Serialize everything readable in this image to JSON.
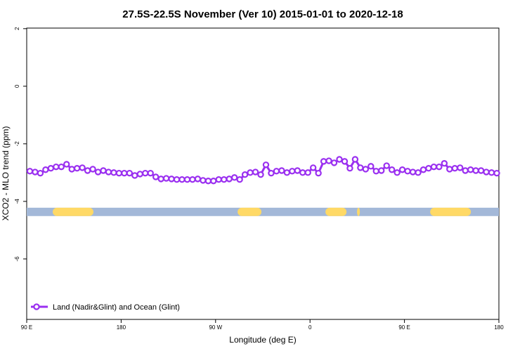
{
  "chart_data": {
    "type": "line",
    "title": "27.5S-22.5S November (Ver 10)   2015-01-01 to 2020-12-18",
    "x_label": "Longitude (deg E)",
    "y_label": "XCO2 - MLO trend (ppm)",
    "xlim": [
      90,
      540
    ],
    "ylim": [
      -8.1,
      2.02
    ],
    "xticks": [
      {
        "value": 90,
        "label": "90 E"
      },
      180,
      {
        "value": 270,
        "label": "90 W"
      },
      {
        "value": 360,
        "label": "0"
      },
      {
        "value": 450,
        "label": "90 E"
      },
      {
        "value": 540,
        "label": "180"
      }
    ],
    "yticks": [
      2,
      0,
      -2,
      -4,
      -6
    ],
    "legend": "bottom-left",
    "land_color": "#ffd966",
    "ocean_color": "#a3b8d8",
    "land_ranges": [
      [
        114.8,
        153.6
      ],
      [
        291,
        313.7
      ],
      [
        374.7,
        394.8
      ],
      [
        404.8,
        407.5
      ],
      [
        474.5,
        513.3
      ]
    ],
    "x": [
      93,
      98,
      103,
      108,
      113,
      118,
      123,
      128,
      133,
      138,
      143,
      148,
      153,
      158,
      163,
      168,
      173,
      178,
      183,
      188,
      193,
      198,
      203,
      208,
      213,
      218,
      223,
      228,
      233,
      238,
      243,
      248,
      253,
      258,
      263,
      268,
      273,
      278,
      283,
      288,
      293,
      298,
      303,
      308,
      313,
      318,
      323,
      328,
      333,
      338,
      343,
      348,
      353,
      358,
      363,
      368,
      373,
      378,
      383,
      388,
      393,
      398,
      403,
      408,
      413,
      418,
      423,
      428,
      433,
      438,
      443,
      448,
      453,
      458,
      463,
      468,
      473,
      478,
      483,
      488,
      493,
      498,
      503,
      508,
      513,
      518,
      523,
      528,
      533,
      538
    ],
    "series": [
      {
        "name": "Land (Nadir&Glint) and Ocean (Glint)",
        "color": "#9a2ff0",
        "values": [
          -2.95,
          -2.98,
          -3.02,
          -2.9,
          -2.85,
          -2.8,
          -2.8,
          -2.71,
          -2.88,
          -2.85,
          -2.83,
          -2.93,
          -2.88,
          -2.98,
          -2.93,
          -2.98,
          -3.0,
          -3.02,
          -3.02,
          -3.02,
          -3.1,
          -3.05,
          -3.02,
          -3.02,
          -3.15,
          -3.22,
          -3.2,
          -3.22,
          -3.24,
          -3.24,
          -3.24,
          -3.24,
          -3.22,
          -3.27,
          -3.29,
          -3.29,
          -3.24,
          -3.24,
          -3.22,
          -3.17,
          -3.24,
          -3.07,
          -3.0,
          -2.98,
          -3.07,
          -2.73,
          -3.02,
          -2.95,
          -2.93,
          -3.0,
          -2.95,
          -2.93,
          -3.0,
          -3.0,
          -2.83,
          -3.02,
          -2.61,
          -2.59,
          -2.66,
          -2.54,
          -2.61,
          -2.85,
          -2.54,
          -2.83,
          -2.88,
          -2.78,
          -2.95,
          -2.93,
          -2.76,
          -2.9,
          -3.0,
          -2.9,
          -2.95,
          -2.98,
          -3.0,
          -2.9,
          -2.85,
          -2.8,
          -2.8,
          -2.68,
          -2.88,
          -2.85,
          -2.83,
          -2.93,
          -2.9,
          -2.93,
          -2.93,
          -2.98,
          -3.0,
          -3.02
        ]
      }
    ]
  }
}
